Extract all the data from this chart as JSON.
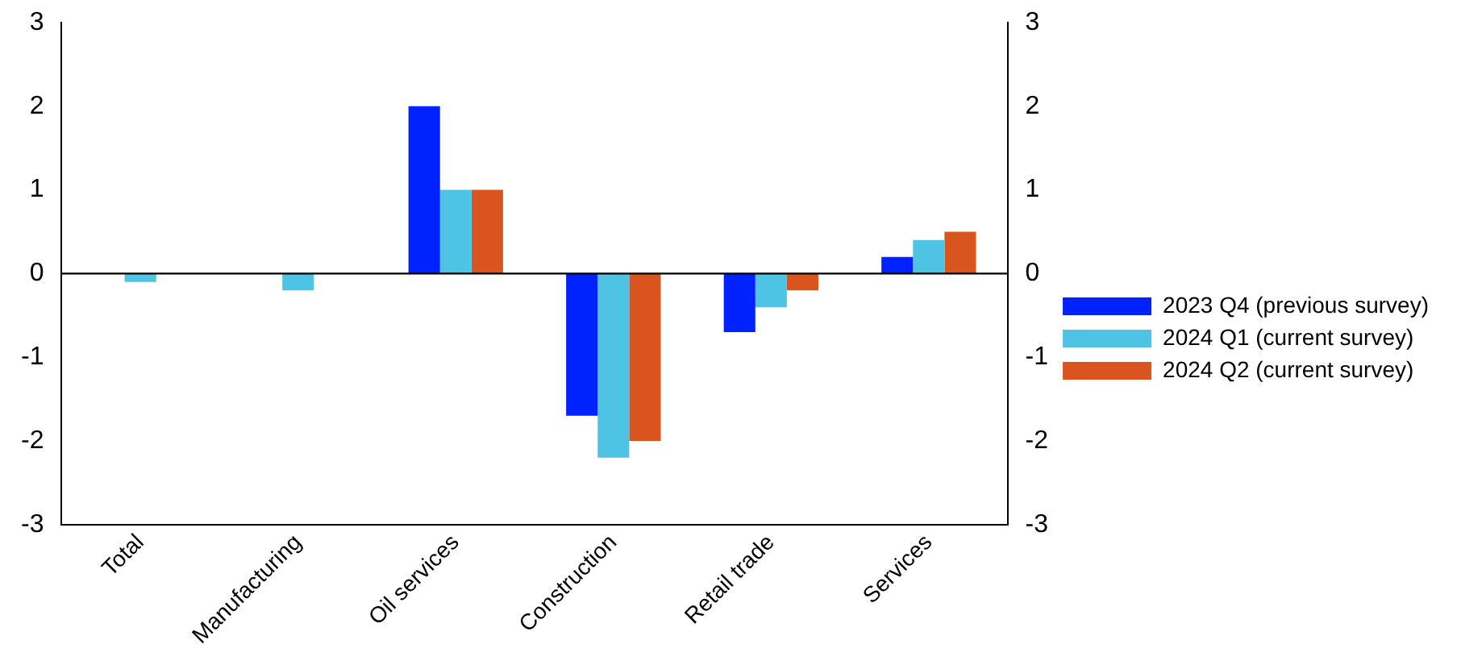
{
  "chart_data": {
    "type": "bar",
    "categories": [
      "Total",
      "Manufacturing",
      "Oil services",
      "Construction",
      "Retail trade",
      "Services"
    ],
    "series": [
      {
        "name": "2023 Q4 (previous survey)",
        "color": "#0022ff",
        "values": [
          0,
          0,
          2,
          -1.7,
          -0.7,
          0.2
        ]
      },
      {
        "name": "2024 Q1 (current survey)",
        "color": "#4fc3e3",
        "values": [
          -0.1,
          -0.2,
          1,
          -2.2,
          -0.4,
          0.4
        ]
      },
      {
        "name": "2024 Q2 (current survey)",
        "color": "#d9541e",
        "values": [
          0,
          0,
          1,
          -2,
          -0.2,
          0.5
        ]
      }
    ],
    "ylim": [
      -3,
      3
    ],
    "yticks": [
      -3,
      -2,
      -1,
      0,
      1,
      2,
      3
    ],
    "y2lim": [
      -3,
      3
    ],
    "y2ticks": [
      -3,
      -2,
      -1,
      0,
      1,
      2,
      3
    ],
    "ref_lines": [
      {
        "axis": "y",
        "value": 0,
        "color": "#000000"
      }
    ],
    "grid": false,
    "legend": "right"
  }
}
